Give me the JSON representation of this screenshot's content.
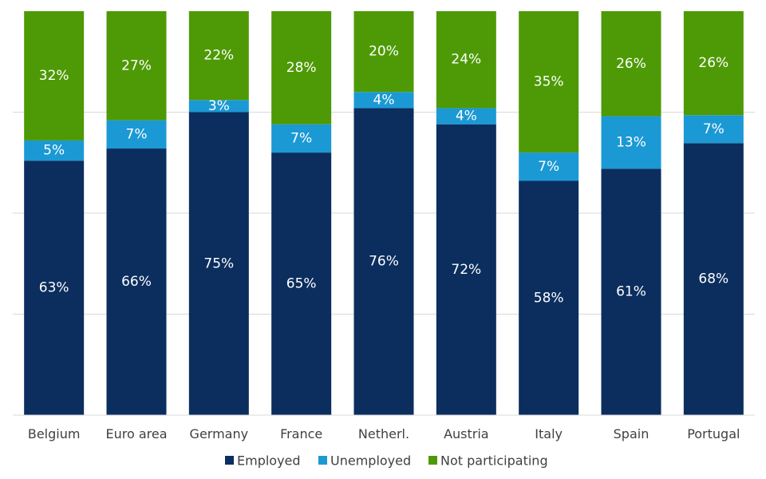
{
  "chart_data": {
    "type": "bar",
    "stacked": true,
    "stack_total": 100,
    "categories": [
      "Belgium",
      "Euro area",
      "Germany",
      "France",
      "Netherl.",
      "Austria",
      "Italy",
      "Spain",
      "Portugal"
    ],
    "series": [
      {
        "name": "Employed",
        "values": [
          63,
          66,
          75,
          65,
          76,
          72,
          58,
          61,
          68
        ],
        "labels": [
          "63%",
          "66%",
          "75%",
          "65%",
          "76%",
          "72%",
          "58%",
          "61%",
          "68%"
        ],
        "color": "#0b2e5e"
      },
      {
        "name": "Unemployed",
        "values": [
          5,
          7,
          3,
          7,
          4,
          4,
          7,
          13,
          7
        ],
        "labels": [
          "5%",
          "7%",
          "3%",
          "7%",
          "4%",
          "4%",
          "7%",
          "13%",
          "7%"
        ],
        "color": "#1b99d4"
      },
      {
        "name": "Not participating",
        "values": [
          32,
          27,
          22,
          28,
          20,
          24,
          35,
          26,
          26
        ],
        "labels": [
          "32%",
          "27%",
          "22%",
          "28%",
          "20%",
          "24%",
          "35%",
          "26%",
          "26%"
        ],
        "color": "#4e9a06"
      }
    ],
    "ylim": [
      0,
      100
    ],
    "gridlines": [
      25,
      50,
      75
    ],
    "grid": true,
    "legend_position": "bottom"
  }
}
